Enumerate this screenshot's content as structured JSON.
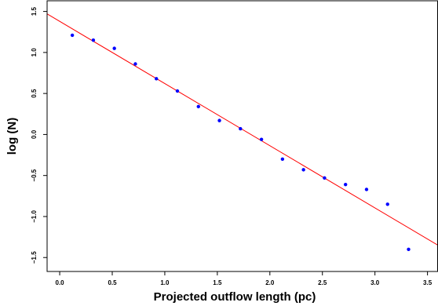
{
  "chart_data": {
    "type": "scatter",
    "title": "",
    "xlabel": "Projected outflow length (pc)",
    "ylabel": "log (N)",
    "xlim": [
      -0.12,
      3.6
    ],
    "ylim": [
      -1.67,
      1.63
    ],
    "grid": false,
    "legend": "none",
    "x_ticks": [
      0.0,
      0.5,
      1.0,
      1.5,
      2.0,
      2.5,
      3.0,
      3.5
    ],
    "x_tick_labels": [
      "0.0",
      "0.5",
      "1.0",
      "1.5",
      "2.0",
      "2.5",
      "3.0",
      "3.5"
    ],
    "y_ticks": [
      -1.5,
      -1.0,
      -0.5,
      0.0,
      0.5,
      1.0,
      1.5
    ],
    "y_tick_labels": [
      "−1.5",
      "−1.0",
      "−0.5",
      "0.0",
      "0.5",
      "1.0",
      "1.5"
    ],
    "series": [
      {
        "type": "scatter",
        "color": "#0000ff",
        "x": [
          0.12,
          0.32,
          0.52,
          0.72,
          0.92,
          1.12,
          1.32,
          1.52,
          1.72,
          1.92,
          2.12,
          2.32,
          2.52,
          2.72,
          2.92,
          3.12,
          3.32
        ],
        "y": [
          1.21,
          1.15,
          1.05,
          0.86,
          0.68,
          0.53,
          0.34,
          0.17,
          0.07,
          -0.06,
          -0.3,
          -0.43,
          -0.53,
          -0.61,
          -0.67,
          -0.85,
          -1.4
        ]
      },
      {
        "type": "line",
        "color": "#ff0000",
        "x": [
          -0.12,
          3.6
        ],
        "y": [
          1.47,
          -1.35
        ]
      }
    ]
  }
}
